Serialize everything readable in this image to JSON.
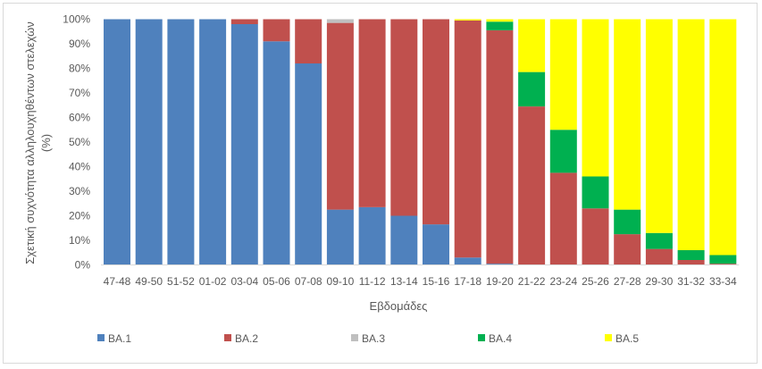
{
  "chart_data": {
    "type": "bar",
    "stacked": "percent",
    "title": "",
    "xlabel": "Εβδομάδες",
    "ylabel_line1": "Σχετική συχνότητα αλληλουχηθέντων στελεχών",
    "ylabel_line2": "(%)",
    "ylim": [
      0,
      100
    ],
    "yticks": [
      "0%",
      "10%",
      "20%",
      "30%",
      "40%",
      "50%",
      "60%",
      "70%",
      "80%",
      "90%",
      "100%"
    ],
    "grid": false,
    "legend_position": "bottom",
    "categories": [
      "47-48",
      "49-50",
      "51-52",
      "01-02",
      "03-04",
      "05-06",
      "07-08",
      "09-10",
      "11-12",
      "13-14",
      "15-16",
      "17-18",
      "19-20",
      "21-22",
      "23-24",
      "25-26",
      "27-28",
      "29-30",
      "31-32",
      "33-34"
    ],
    "series": [
      {
        "name": "BA.1",
        "color": "#4f81bd",
        "values": [
          100,
          100,
          100,
          100,
          98,
          91,
          82,
          22.5,
          23.5,
          20,
          16.5,
          3,
          0.5,
          0,
          0,
          0,
          0,
          0,
          0,
          0
        ]
      },
      {
        "name": "BA.2",
        "color": "#c0504d",
        "values": [
          0,
          0,
          0,
          0,
          2,
          9,
          18,
          76,
          76.5,
          80,
          83.5,
          96.5,
          95,
          64.5,
          37.5,
          23,
          12.5,
          6.5,
          2,
          0.5
        ]
      },
      {
        "name": "BA.3",
        "color": "#bfbfbf",
        "values": [
          0,
          0,
          0,
          0,
          0,
          0,
          0,
          1.5,
          0,
          0,
          0,
          0,
          0,
          0,
          0,
          0,
          0,
          0,
          0,
          0
        ]
      },
      {
        "name": "BA.4",
        "color": "#00b050",
        "values": [
          0,
          0,
          0,
          0,
          0,
          0,
          0,
          0,
          0,
          0,
          0,
          0,
          3.5,
          14,
          17.5,
          13,
          10,
          6.5,
          4,
          3.5
        ]
      },
      {
        "name": "BA.5",
        "color": "#ffff00",
        "values": [
          0,
          0,
          0,
          0,
          0,
          0,
          0,
          0,
          0,
          0,
          0,
          0.5,
          1,
          21.5,
          45,
          64,
          77.5,
          87,
          94,
          96
        ]
      }
    ]
  }
}
